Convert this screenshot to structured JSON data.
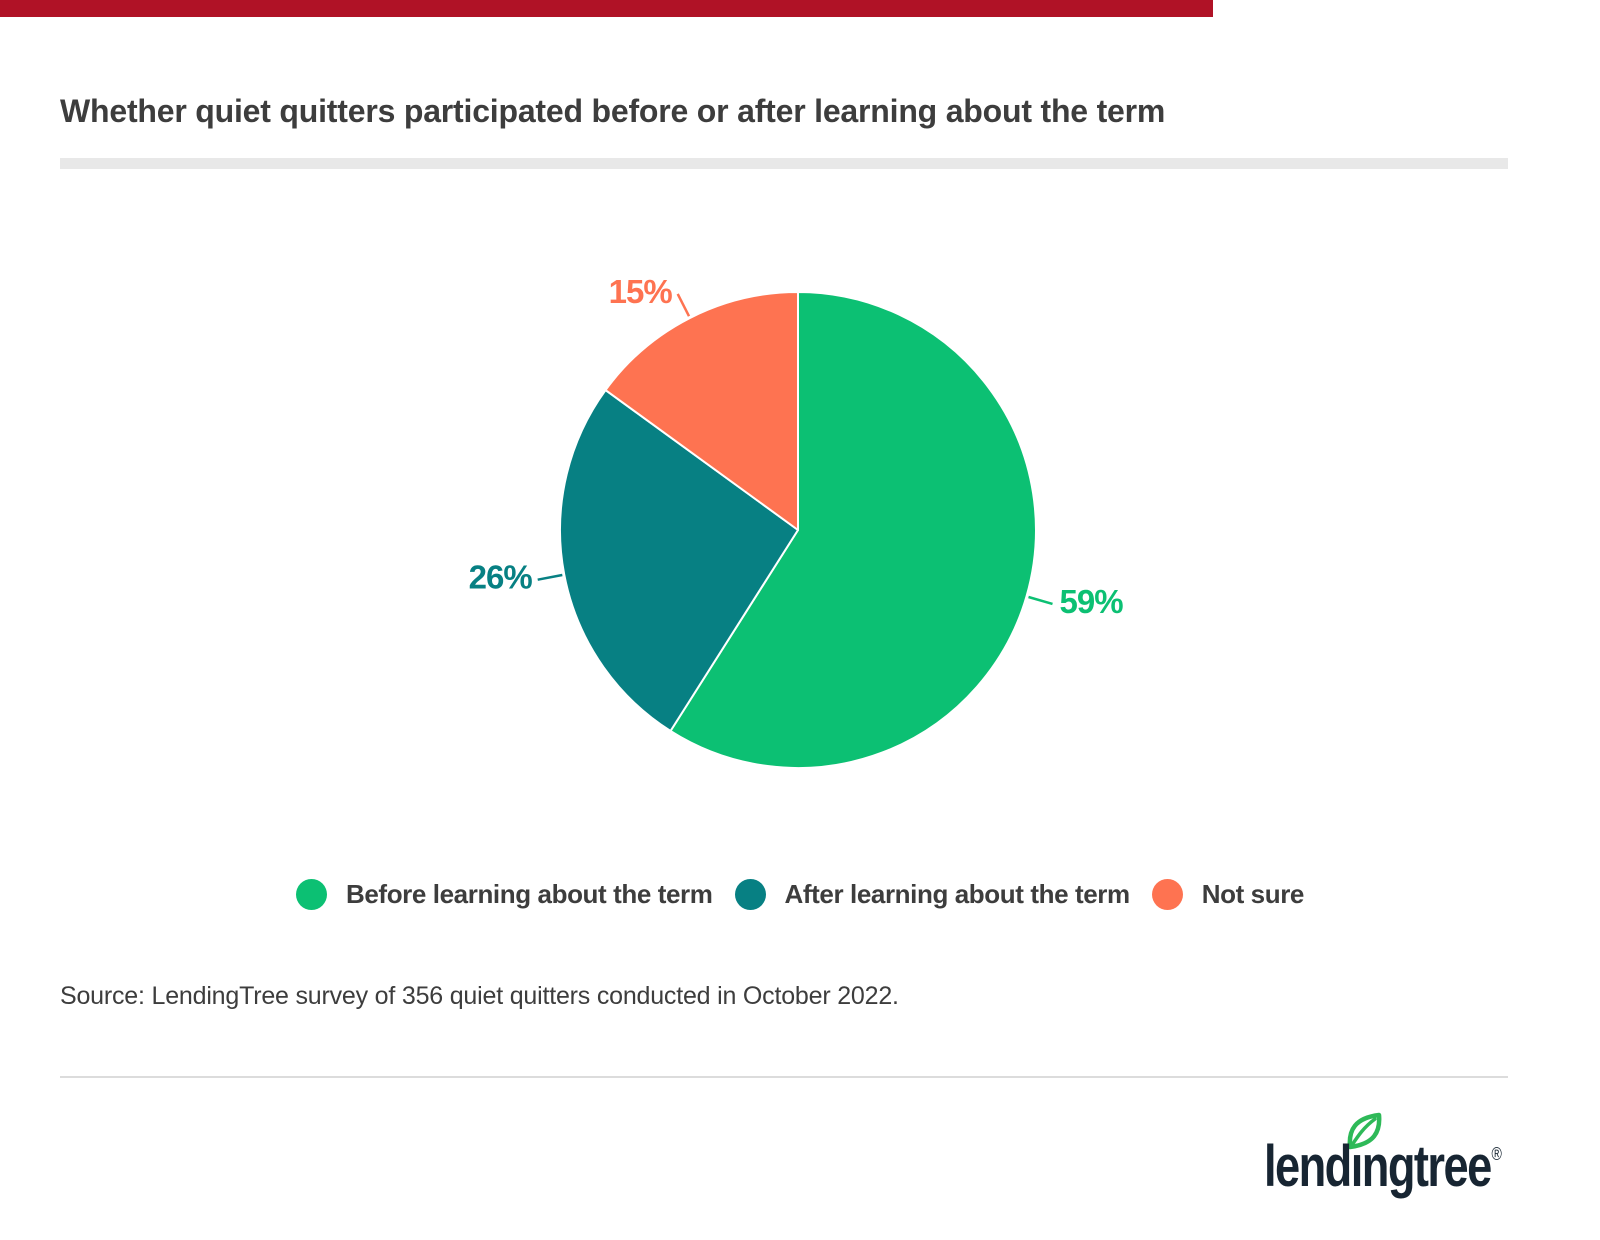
{
  "top_bar": {
    "color": "#b01226"
  },
  "header": {
    "title": "Whether quiet quitters participated before or after learning about the term"
  },
  "chart_data": {
    "type": "pie",
    "title": "Whether quiet quitters participated before or after learning about the term",
    "unit": "%",
    "direction": "clockwise",
    "start_angle_deg": 0,
    "legend_position": "bottom",
    "slices": [
      {
        "label": "Before learning about the term",
        "value": 59,
        "data_label": "59%",
        "color": "#0cc073"
      },
      {
        "label": "After learning about the term",
        "value": 26,
        "data_label": "26%",
        "color": "#078083"
      },
      {
        "label": "Not sure",
        "value": 15,
        "data_label": "15%",
        "color": "#fe7351"
      }
    ]
  },
  "source": {
    "text": "Source: LendingTree survey of 356 quiet quitters conducted in October 2022."
  },
  "logo": {
    "word_left": "lend",
    "word_i": "ı",
    "word_right": "ngtree",
    "registered": "®",
    "navy": "#172532",
    "leaf_green": "#2eb958"
  }
}
